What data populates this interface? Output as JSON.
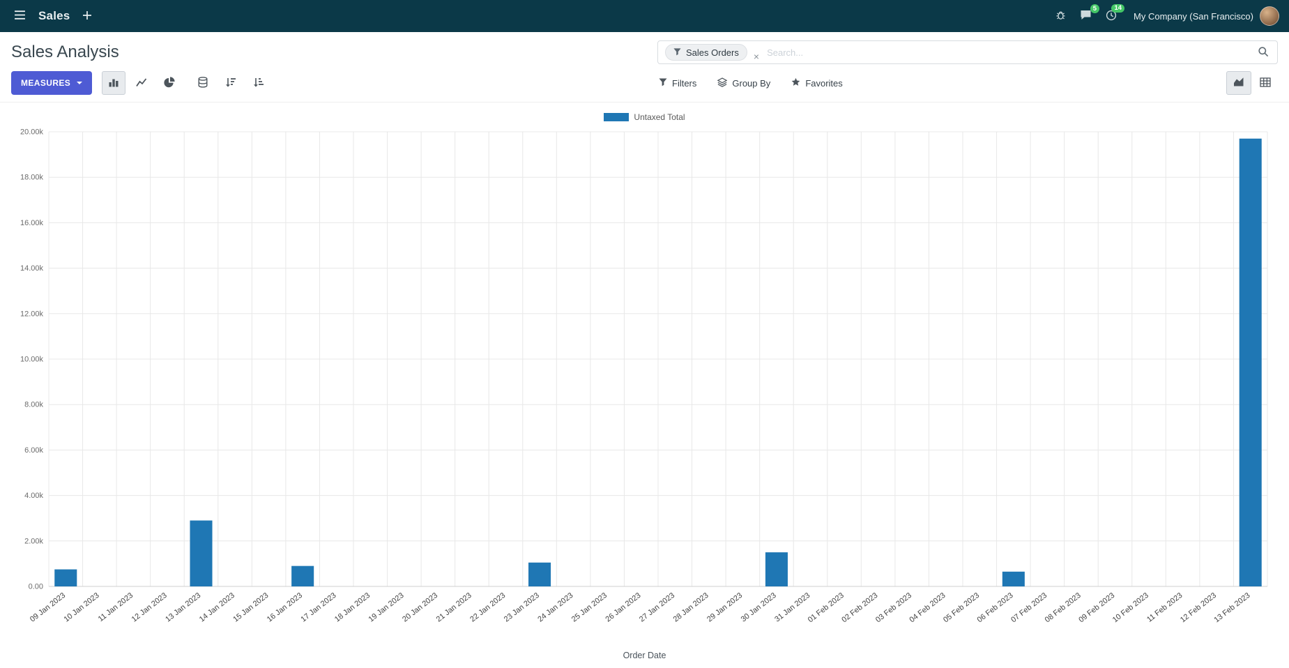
{
  "navbar": {
    "app_name": "Sales",
    "company": "My Company (San Francisco)",
    "messages_badge": "5",
    "activities_badge": "14"
  },
  "control_panel": {
    "title": "Sales Analysis",
    "measures_label": "MEASURES",
    "search": {
      "facet": "Sales Orders",
      "facet_remove": "×",
      "placeholder": "Search..."
    },
    "filters_label": "Filters",
    "group_by_label": "Group By",
    "favorites_label": "Favorites"
  },
  "icons": {
    "apps_menu": "hamburger",
    "new_window": "plus",
    "debug": "bug",
    "messages": "chat-bubble",
    "activities": "clock",
    "search": "magnifier",
    "facet_filter": "funnel",
    "bar_chart": "bar-chart",
    "line_chart": "line-chart",
    "pie_chart": "pie-chart",
    "stacked": "database",
    "sort_desc": "sort-descending",
    "sort_asc": "sort-ascending",
    "filters": "funnel",
    "group_by": "layers",
    "favorites": "star",
    "graph_view": "area-chart",
    "pivot_view": "table-grid"
  },
  "chart_data": {
    "type": "bar",
    "title": "",
    "xlabel": "Order Date",
    "ylim": [
      0,
      20000
    ],
    "ytick_step": 2000,
    "ytick_labels": [
      "0.00",
      "2.00k",
      "4.00k",
      "6.00k",
      "8.00k",
      "10.00k",
      "12.00k",
      "14.00k",
      "16.00k",
      "18.00k",
      "20.00k"
    ],
    "grid": true,
    "legend_position": "top-center",
    "categories": [
      "09 Jan 2023",
      "10 Jan 2023",
      "11 Jan 2023",
      "12 Jan 2023",
      "13 Jan 2023",
      "14 Jan 2023",
      "15 Jan 2023",
      "16 Jan 2023",
      "17 Jan 2023",
      "18 Jan 2023",
      "19 Jan 2023",
      "20 Jan 2023",
      "21 Jan 2023",
      "22 Jan 2023",
      "23 Jan 2023",
      "24 Jan 2023",
      "25 Jan 2023",
      "26 Jan 2023",
      "27 Jan 2023",
      "28 Jan 2023",
      "29 Jan 2023",
      "30 Jan 2023",
      "31 Jan 2023",
      "01 Feb 2023",
      "02 Feb 2023",
      "03 Feb 2023",
      "04 Feb 2023",
      "05 Feb 2023",
      "06 Feb 2023",
      "07 Feb 2023",
      "08 Feb 2023",
      "09 Feb 2023",
      "10 Feb 2023",
      "11 Feb 2023",
      "12 Feb 2023",
      "13 Feb 2023"
    ],
    "series": [
      {
        "name": "Untaxed Total",
        "color": "#1f77b4",
        "values": [
          750,
          0,
          0,
          0,
          2900,
          0,
          0,
          900,
          0,
          0,
          0,
          0,
          0,
          0,
          1050,
          0,
          0,
          0,
          0,
          0,
          0,
          1500,
          0,
          0,
          0,
          0,
          0,
          0,
          650,
          0,
          0,
          0,
          0,
          0,
          0,
          19700
        ]
      }
    ]
  }
}
